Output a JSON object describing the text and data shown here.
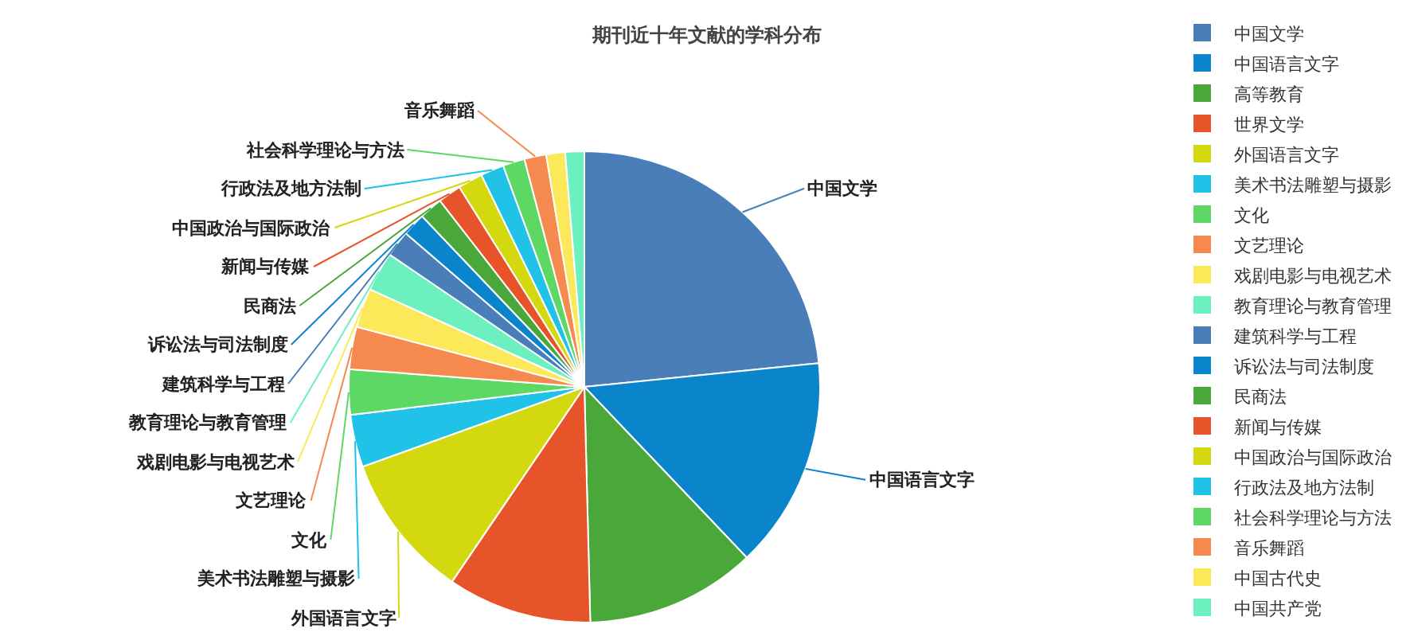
{
  "chart_data": {
    "type": "pie",
    "title": "期刊近十年文献的学科分布",
    "categories": [
      "中国文学",
      "中国语言文字",
      "高等教育",
      "世界文学",
      "外国语言文字",
      "美术书法雕塑与摄影",
      "文化",
      "文艺理论",
      "戏剧电影与电视艺术",
      "教育理论与教育管理",
      "建筑科学与工程",
      "诉讼法与司法制度",
      "民商法",
      "新闻与传媒",
      "中国政治与国际政治",
      "行政法及地方法制",
      "社会科学理论与方法",
      "音乐舞蹈",
      "中国古代史",
      "中国共产党"
    ],
    "values": [
      23.4,
      14.5,
      11.7,
      9.9,
      10.0,
      3.6,
      3.1,
      2.9,
      2.7,
      2.7,
      1.8,
      1.6,
      1.6,
      1.6,
      1.7,
      1.6,
      1.5,
      1.5,
      1.3,
      1.3
    ],
    "colors": [
      "#4a7eb8",
      "#0a85cc",
      "#4aa83a",
      "#e8542a",
      "#d4d90f",
      "#20c2e8",
      "#5ed865",
      "#f5894e",
      "#fbe95a",
      "#6cf0c0",
      "#4a7eb8",
      "#0a85cc",
      "#4aa83a",
      "#e8542a",
      "#d4d90f",
      "#20c2e8",
      "#5ed865",
      "#f5894e",
      "#fbe95a",
      "#6cf0c0"
    ],
    "value_labels": [
      "中国文学",
      "中国语言文字",
      null,
      null,
      "外国语言文字",
      "美术书法雕塑与摄影",
      "文化",
      "文艺理论",
      "戏剧电影与电视艺术",
      "教育理论与教育管理",
      "建筑科学与工程",
      "诉讼法与司法制度",
      "民商法",
      "新闻与传媒",
      "中国政治与国际政治",
      "行政法及地方法制",
      "社会科学理论与方法",
      "音乐舞蹈",
      null,
      null
    ],
    "legend": "right"
  }
}
